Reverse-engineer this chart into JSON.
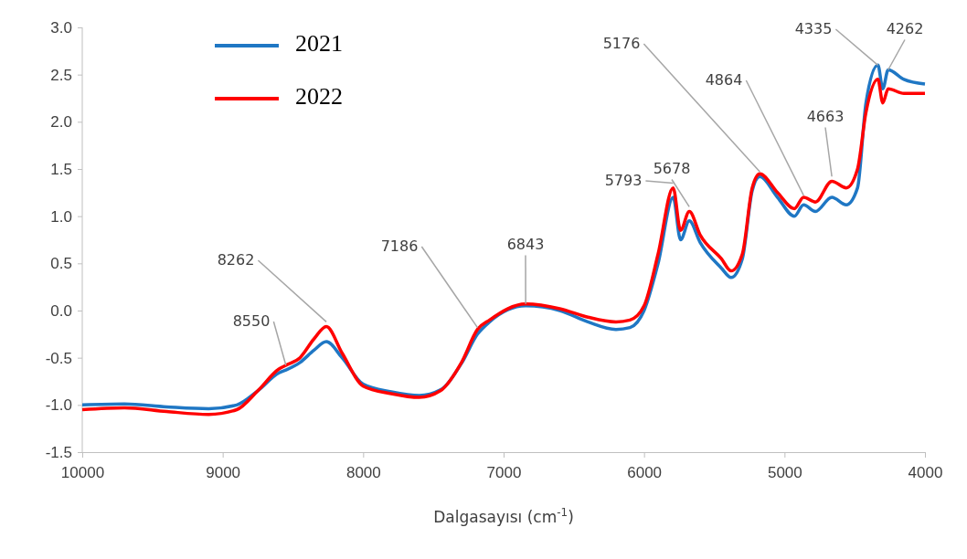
{
  "chart_data": {
    "type": "line",
    "xlabel": "Dalgasayısı (cm$^{-1}$)",
    "x": [
      10000,
      9700,
      9400,
      9100,
      8900,
      8750,
      8600,
      8550,
      8450,
      8350,
      8262,
      8150,
      8000,
      7800,
      7600,
      7450,
      7300,
      7186,
      7100,
      6843,
      6600,
      6400,
      6200,
      6100,
      6000,
      5900,
      5793,
      5740,
      5678,
      5600,
      5450,
      5380,
      5300,
      5230,
      5176,
      5050,
      4930,
      4864,
      4780,
      4663,
      4560,
      4480,
      4420,
      4335,
      4300,
      4262,
      4150,
      4000
    ],
    "series": [
      {
        "name": "2021",
        "color": "#1f77c4",
        "values": [
          -1.0,
          -0.99,
          -1.02,
          -1.04,
          -1.0,
          -0.85,
          -0.66,
          -0.63,
          -0.55,
          -0.42,
          -0.33,
          -0.5,
          -0.78,
          -0.86,
          -0.9,
          -0.84,
          -0.56,
          -0.25,
          -0.12,
          0.05,
          0.0,
          -0.12,
          -0.2,
          -0.18,
          0.0,
          0.5,
          1.2,
          0.75,
          0.95,
          0.72,
          0.45,
          0.35,
          0.55,
          1.27,
          1.42,
          1.2,
          1.0,
          1.12,
          1.05,
          1.2,
          1.12,
          1.3,
          2.2,
          2.6,
          2.35,
          2.55,
          2.45,
          2.4
        ]
      },
      {
        "name": "2022",
        "color": "#ff0000",
        "values": [
          -1.05,
          -1.03,
          -1.07,
          -1.1,
          -1.05,
          -0.85,
          -0.62,
          -0.58,
          -0.5,
          -0.3,
          -0.17,
          -0.45,
          -0.8,
          -0.88,
          -0.92,
          -0.85,
          -0.55,
          -0.2,
          -0.1,
          0.07,
          0.02,
          -0.07,
          -0.12,
          -0.1,
          0.05,
          0.6,
          1.3,
          0.85,
          1.05,
          0.8,
          0.55,
          0.42,
          0.6,
          1.3,
          1.45,
          1.25,
          1.08,
          1.2,
          1.15,
          1.37,
          1.3,
          1.5,
          2.1,
          2.45,
          2.2,
          2.35,
          2.3,
          2.3
        ]
      }
    ],
    "xlim": [
      10000,
      4000
    ],
    "xticks": [
      10000,
      9000,
      8000,
      7000,
      6000,
      5000,
      4000
    ],
    "ylim": [
      -1.5,
      3.0
    ],
    "yticks": [
      {
        "value": -1.5,
        "label": "-1.5"
      },
      {
        "value": -1,
        "label": "-1.0"
      },
      {
        "value": -0.5,
        "label": "-0.5"
      },
      {
        "value": 0,
        "label": "0.0"
      },
      {
        "value": 0.5,
        "label": "0.5"
      },
      {
        "value": 1,
        "label": "1.0"
      },
      {
        "value": 1.5,
        "label": "1.5"
      },
      {
        "value": 2,
        "label": "2.0"
      },
      {
        "value": 2.5,
        "label": "2.5"
      },
      {
        "value": 3,
        "label": "3.0"
      }
    ],
    "legend": "top left",
    "annotations": [
      {
        "text": "8550",
        "x": 8550,
        "y": -0.58
      },
      {
        "text": "8262",
        "x": 8262,
        "y": -0.12
      },
      {
        "text": "7186",
        "x": 7186,
        "y": -0.18
      },
      {
        "text": "6843",
        "x": 6843,
        "y": 0.07
      },
      {
        "text": "5793",
        "x": 5793,
        "y": 1.35
      },
      {
        "text": "5678",
        "x": 5678,
        "y": 1.1
      },
      {
        "text": "5176",
        "x": 5176,
        "y": 1.47
      },
      {
        "text": "4864",
        "x": 4864,
        "y": 1.22
      },
      {
        "text": "4663",
        "x": 4663,
        "y": 1.42
      },
      {
        "text": "4335",
        "x": 4335,
        "y": 2.6
      },
      {
        "text": "4262",
        "x": 4262,
        "y": 2.55
      }
    ]
  }
}
